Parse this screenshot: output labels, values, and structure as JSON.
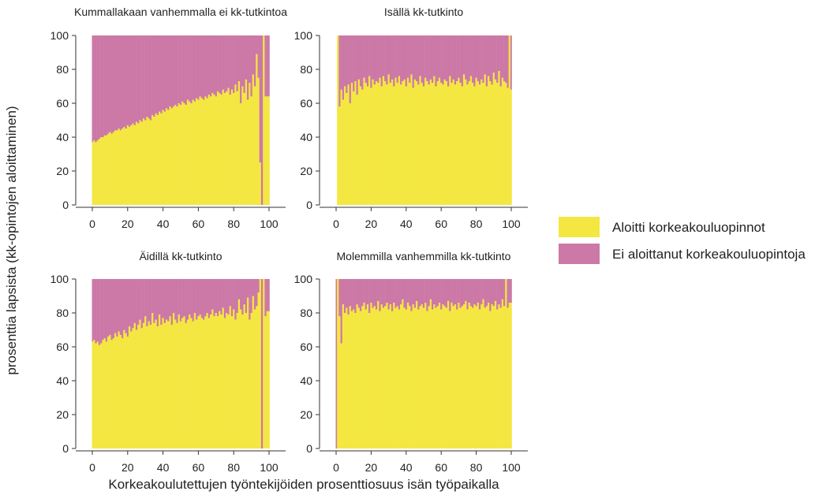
{
  "figure": {
    "ylabel": "prosenttia lapsista (kk-opintojen aloittaminen)",
    "xlabel": "Korkeakoulutettujen työntekijöiden prosenttiosuus isän työpaikalla"
  },
  "legend": {
    "placement": "right",
    "items": [
      {
        "label": "Aloitti korkeakouluopinnot",
        "color": "#F4E742"
      },
      {
        "label": "Ei aloittanut korkeakouluopintoja",
        "color": "#CC79A7"
      }
    ]
  },
  "colors": {
    "started": "#F4E742",
    "not_started": "#CC79A7",
    "axis": "#333333"
  },
  "chart_data": [
    {
      "type": "bar",
      "stacked": true,
      "title": "Kummallakaan vanhemmalla ei kk-tutkintoa",
      "xlim": [
        0,
        100
      ],
      "ylim": [
        0,
        100
      ],
      "xticks": [
        0,
        20,
        40,
        60,
        80,
        100
      ],
      "yticks": [
        0,
        20,
        40,
        60,
        80,
        100
      ],
      "series": [
        {
          "name": "Aloitti korkeakouluopinnot",
          "y": [
            37,
            38,
            37,
            38,
            39,
            40,
            40,
            41,
            41,
            42,
            43,
            42,
            43,
            44,
            44,
            45,
            44,
            45,
            46,
            45,
            47,
            46,
            47,
            48,
            47,
            49,
            48,
            50,
            49,
            51,
            50,
            52,
            51,
            50,
            53,
            52,
            54,
            53,
            55,
            54,
            56,
            55,
            57,
            56,
            58,
            57,
            58,
            59,
            58,
            60,
            59,
            61,
            60,
            59,
            62,
            61,
            60,
            62,
            61,
            63,
            62,
            64,
            63,
            62,
            64,
            63,
            65,
            64,
            66,
            65,
            64,
            67,
            66,
            65,
            68,
            66,
            67,
            69,
            65,
            68,
            66,
            71,
            67,
            73,
            60,
            70,
            66,
            74,
            62,
            72,
            64,
            77,
            70,
            89,
            75,
            25,
            0,
            100,
            64,
            64,
            64
          ]
        },
        {
          "name": "Ei aloittanut korkeakouluopintoja"
        }
      ]
    },
    {
      "type": "bar",
      "stacked": true,
      "title": "Isällä kk-tutkinto",
      "xlim": [
        0,
        100
      ],
      "ylim": [
        0,
        100
      ],
      "xticks": [
        0,
        20,
        40,
        60,
        80,
        100
      ],
      "yticks": [
        0,
        20,
        40,
        60,
        80,
        100
      ],
      "series": [
        {
          "name": "Aloitti korkeakouluopinnot",
          "y": [
            null,
            100,
            58,
            68,
            62,
            70,
            66,
            71,
            60,
            72,
            67,
            73,
            65,
            74,
            70,
            68,
            75,
            72,
            70,
            76,
            69,
            74,
            71,
            73,
            72,
            75,
            70,
            76,
            73,
            71,
            77,
            72,
            74,
            70,
            75,
            72,
            76,
            71,
            73,
            74,
            70,
            75,
            72,
            77,
            69,
            74,
            73,
            71,
            76,
            72,
            70,
            75,
            73,
            71,
            74,
            72,
            76,
            70,
            73,
            75,
            72,
            71,
            74,
            73,
            70,
            76,
            72,
            74,
            71,
            73,
            75,
            72,
            70,
            77,
            74,
            71,
            73,
            76,
            72,
            70,
            75,
            73,
            71,
            74,
            72,
            77,
            70,
            76,
            73,
            71,
            78,
            74,
            72,
            79,
            70,
            75,
            73,
            72,
            69,
            100,
            68
          ]
        },
        {
          "name": "Ei aloittanut korkeakouluopintoja"
        }
      ]
    },
    {
      "type": "bar",
      "stacked": true,
      "title": "Äidillä kk-tutkinto",
      "xlim": [
        0,
        100
      ],
      "ylim": [
        0,
        100
      ],
      "xticks": [
        0,
        20,
        40,
        60,
        80,
        100
      ],
      "yticks": [
        0,
        20,
        40,
        60,
        80,
        100
      ],
      "series": [
        {
          "name": "Aloitti korkeakouluopinnot",
          "y": [
            63,
            64,
            62,
            63,
            61,
            62,
            64,
            65,
            63,
            66,
            67,
            64,
            65,
            68,
            66,
            69,
            67,
            65,
            70,
            68,
            66,
            72,
            69,
            71,
            74,
            70,
            73,
            76,
            71,
            74,
            78,
            72,
            75,
            73,
            80,
            74,
            76,
            72,
            79,
            73,
            77,
            74,
            76,
            75,
            78,
            73,
            80,
            76,
            74,
            79,
            75,
            77,
            78,
            74,
            76,
            79,
            77,
            75,
            80,
            76,
            78,
            79,
            77,
            76,
            78,
            80,
            77,
            79,
            82,
            78,
            80,
            78,
            81,
            79,
            83,
            77,
            80,
            79,
            84,
            78,
            82,
            76,
            80,
            88,
            82,
            79,
            85,
            80,
            89,
            76,
            80,
            90,
            82,
            84,
            92,
            100,
            0,
            100,
            78,
            81,
            81
          ]
        },
        {
          "name": "Ei aloittanut korkeakouluopintoja"
        }
      ]
    },
    {
      "type": "bar",
      "stacked": true,
      "title": "Molemmilla vanhemmilla kk-tutkinto",
      "xlim": [
        0,
        100
      ],
      "ylim": [
        0,
        100
      ],
      "xticks": [
        0,
        20,
        40,
        60,
        80,
        100
      ],
      "yticks": [
        0,
        20,
        40,
        60,
        80,
        100
      ],
      "series": [
        {
          "name": "Aloitti korkeakouluopinnot",
          "y": [
            0,
            100,
            78,
            62,
            85,
            80,
            83,
            79,
            84,
            81,
            82,
            80,
            85,
            83,
            81,
            84,
            86,
            82,
            85,
            80,
            86,
            83,
            84,
            82,
            87,
            81,
            85,
            83,
            84,
            86,
            82,
            85,
            81,
            86,
            83,
            84,
            82,
            85,
            88,
            83,
            82,
            86,
            84,
            81,
            85,
            83,
            87,
            82,
            84,
            85,
            83,
            86,
            81,
            84,
            88,
            82,
            85,
            83,
            84,
            86,
            82,
            85,
            84,
            83,
            87,
            81,
            86,
            84,
            85,
            82,
            86,
            83,
            84,
            85,
            87,
            82,
            86,
            84,
            83,
            85,
            84,
            86,
            82,
            85,
            88,
            83,
            84,
            86,
            81,
            85,
            84,
            87,
            82,
            85,
            83,
            88,
            84,
            100,
            83,
            86,
            86
          ]
        },
        {
          "name": "Ei aloittanut korkeakouluopintoja"
        }
      ]
    }
  ]
}
